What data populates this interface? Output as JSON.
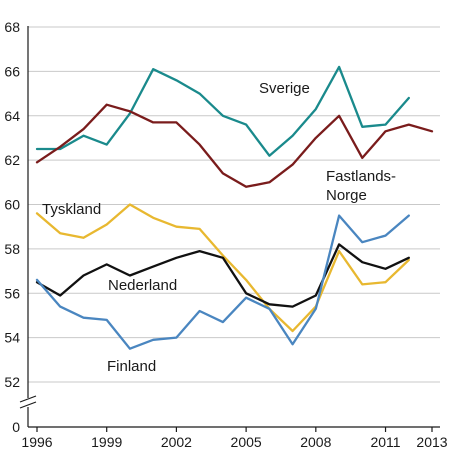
{
  "chart_data": {
    "type": "line",
    "title": "",
    "xlabel": "",
    "ylabel": "",
    "x": [
      1996,
      1997,
      1998,
      1999,
      2000,
      2001,
      2002,
      2003,
      2004,
      2005,
      2006,
      2007,
      2008,
      2009,
      2010,
      2011,
      2012,
      2013
    ],
    "xticks": [
      1996,
      1999,
      2002,
      2005,
      2008,
      2011,
      2013
    ],
    "yticks": [
      0,
      52,
      54,
      56,
      58,
      60,
      62,
      64,
      66,
      68
    ],
    "ylim": [
      52,
      68
    ],
    "y_axis_break": true,
    "grid": true,
    "legend": "inline labels",
    "series": [
      {
        "name": "Sverige",
        "color": "#1a8a8c",
        "values": [
          62.5,
          62.5,
          63.1,
          62.7,
          64.1,
          66.1,
          65.6,
          65.0,
          64.0,
          63.6,
          62.2,
          63.1,
          64.3,
          66.2,
          63.5,
          63.6,
          64.8,
          null
        ]
      },
      {
        "name": "Fastlands-Norge",
        "color": "#7a1c1c",
        "values": [
          61.9,
          62.6,
          63.4,
          64.5,
          64.2,
          63.7,
          63.7,
          62.7,
          61.4,
          60.8,
          61.0,
          61.8,
          63.0,
          64.0,
          62.1,
          63.3,
          63.6,
          63.3
        ]
      },
      {
        "name": "Tyskland",
        "color": "#e8b830",
        "values": [
          59.6,
          58.7,
          58.5,
          59.1,
          60.0,
          59.4,
          59.0,
          58.9,
          57.7,
          56.6,
          55.3,
          54.3,
          55.4,
          57.9,
          56.4,
          56.5,
          57.5,
          null
        ]
      },
      {
        "name": "Nederland",
        "color": "#111111",
        "values": [
          56.5,
          55.9,
          56.8,
          57.3,
          56.8,
          57.2,
          57.6,
          57.9,
          57.6,
          56.0,
          55.5,
          55.4,
          55.9,
          58.2,
          57.4,
          57.1,
          57.6,
          null
        ]
      },
      {
        "name": "Finland",
        "color": "#4a86c0",
        "values": [
          56.6,
          55.4,
          54.9,
          54.8,
          53.5,
          53.9,
          54.0,
          55.2,
          54.7,
          55.8,
          55.3,
          53.7,
          55.3,
          59.5,
          58.3,
          58.6,
          59.5,
          null
        ]
      }
    ],
    "labels": {
      "sverige": "Sverige",
      "norge_line1": "Fastlands-",
      "norge_line2": "Norge",
      "tyskland": "Tyskland",
      "nederland": "Nederland",
      "finland": "Finland"
    }
  }
}
